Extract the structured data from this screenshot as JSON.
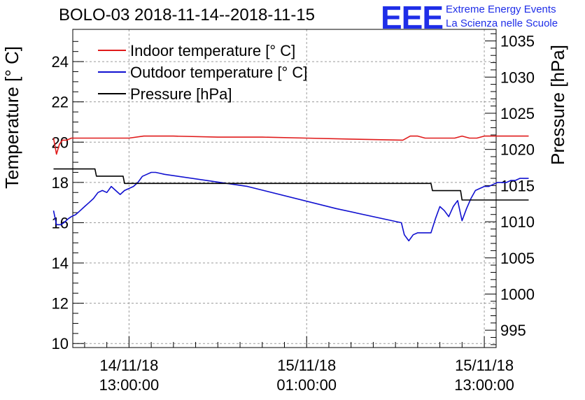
{
  "header": {
    "title": "BOLO-03 2018-11-14--2018-11-15",
    "logo_mark": "EEE",
    "logo_line1": "Extreme Energy Events",
    "logo_line2": "La Scienza nelle Scuole"
  },
  "colors": {
    "indoor": "#e01b1b",
    "outdoor": "#1010d0",
    "pressure": "#000000",
    "logo": "#1f2ee8"
  },
  "chart_data": {
    "type": "line",
    "title": "BOLO-03 2018-11-14--2018-11-15",
    "ylabel": "Temperature [° C]",
    "y2label": "Pressure [hPa]",
    "ylim": [
      9.8,
      25.6
    ],
    "y2lim": [
      992.6,
      1036.6
    ],
    "xlim_hours": [
      -3.8,
      24.8
    ],
    "x_unit": "hours since 14/11/18 13:00:00",
    "yticks": [
      10,
      12,
      14,
      16,
      18,
      20,
      22,
      24
    ],
    "y2ticks": [
      995,
      1000,
      1005,
      1010,
      1015,
      1020,
      1025,
      1030,
      1035
    ],
    "xticks": [
      {
        "hours": 0,
        "line1": "14/11/18",
        "line2": "13:00:00"
      },
      {
        "hours": 12,
        "line1": "15/11/18",
        "line2": "01:00:00"
      },
      {
        "hours": 24,
        "line1": "15/11/18",
        "line2": "13:00:00"
      }
    ],
    "grid": true,
    "legend_position": "top-left",
    "series": [
      {
        "name": "Indoor temperature [° C]",
        "key": "indoor",
        "axis": "left",
        "x": [
          -5.1,
          -4.9,
          -4.7,
          -4.5,
          -4.2,
          -3.9,
          -3.5,
          -3.0,
          -2.0,
          0.0,
          1.0,
          3.0,
          6.0,
          9.0,
          12.0,
          15.0,
          18.5,
          19.0,
          19.5,
          20.0,
          21.0,
          22.0,
          22.5,
          23.0,
          23.5,
          24.0,
          24.5,
          26.0,
          27.0
        ],
        "y": [
          20.2,
          19.4,
          19.9,
          20.1,
          20.1,
          20.2,
          20.2,
          20.2,
          20.2,
          20.2,
          20.3,
          20.3,
          20.25,
          20.25,
          20.2,
          20.15,
          20.1,
          20.3,
          20.3,
          20.2,
          20.2,
          20.2,
          20.3,
          20.2,
          20.2,
          20.3,
          20.3,
          20.3,
          20.3
        ]
      },
      {
        "name": "Outdoor temperature [° C]",
        "key": "outdoor",
        "axis": "left",
        "x": [
          -5.1,
          -4.9,
          -4.6,
          -4.4,
          -4.1,
          -3.9,
          -3.6,
          -3.3,
          -3.0,
          -2.7,
          -2.4,
          -2.1,
          -1.8,
          -1.5,
          -1.2,
          -0.9,
          -0.6,
          -0.3,
          0.0,
          0.3,
          0.6,
          0.9,
          1.2,
          1.5,
          1.8,
          2.1,
          2.4,
          8.0,
          14.0,
          18.4,
          18.6,
          18.9,
          19.2,
          19.5,
          19.8,
          20.1,
          20.4,
          20.7,
          21.0,
          21.3,
          21.6,
          21.9,
          22.2,
          22.5,
          22.8,
          23.1,
          23.4,
          23.7,
          24.0,
          24.3,
          24.6,
          24.9,
          25.2,
          25.5,
          25.8,
          26.1,
          26.4,
          26.7,
          27.0
        ],
        "y": [
          16.6,
          15.9,
          15.9,
          16.0,
          16.2,
          16.3,
          16.4,
          16.6,
          16.8,
          17.0,
          17.2,
          17.5,
          17.6,
          17.5,
          17.8,
          17.6,
          17.4,
          17.6,
          17.7,
          17.8,
          18.0,
          18.3,
          18.4,
          18.5,
          18.5,
          18.45,
          18.4,
          17.8,
          16.7,
          16.0,
          15.4,
          15.1,
          15.4,
          15.5,
          15.5,
          15.5,
          15.5,
          16.2,
          16.8,
          16.6,
          16.3,
          16.8,
          17.1,
          16.1,
          16.7,
          17.2,
          17.6,
          17.7,
          17.8,
          17.8,
          17.9,
          18.0,
          18.0,
          18.0,
          18.1,
          18.1,
          18.2,
          18.2,
          18.2
        ]
      },
      {
        "name": "Pressure [hPa]",
        "key": "pressure",
        "axis": "right",
        "x": [
          -5.1,
          -2.3,
          -2.2,
          -0.4,
          -0.3,
          20.4,
          20.5,
          22.4,
          22.5,
          27.0
        ],
        "y": [
          1017.3,
          1017.3,
          1016.3,
          1016.3,
          1015.3,
          1015.3,
          1014.3,
          1014.3,
          1013.0,
          1013.0
        ]
      }
    ]
  }
}
